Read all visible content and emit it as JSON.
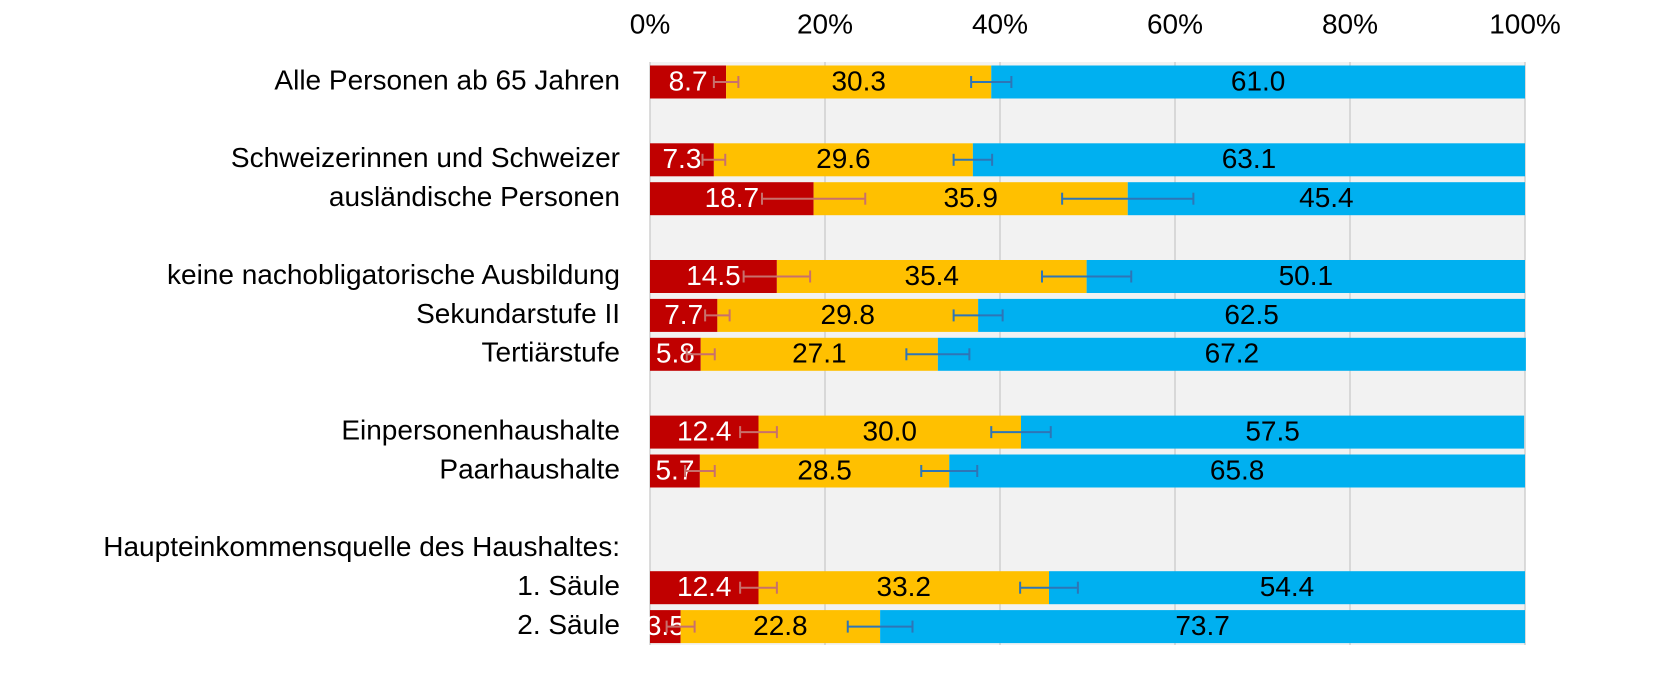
{
  "chart_data": {
    "type": "bar",
    "orientation": "horizontal",
    "stacked": true,
    "categories": [
      "Alle Personen ab 65 Jahren",
      null,
      "Schweizerinnen und Schweizer",
      "ausländische Personen",
      null,
      "keine nachobligatorische Ausbildung",
      "Sekundarstufe II",
      "Tertiärstufe",
      null,
      "Einpersonenhaushalte",
      "Paarhaushalte",
      null,
      "Haupteinkommensquelle des Haushaltes:",
      "1. Säule",
      "2. Säule"
    ],
    "series": [
      {
        "color": "#c00000",
        "label_color": "#ffffff",
        "error_color": "#c8706c",
        "values": [
          8.7,
          null,
          7.3,
          18.7,
          null,
          14.5,
          7.7,
          5.8,
          null,
          12.4,
          5.7,
          null,
          null,
          12.4,
          3.5
        ],
        "value_labels": [
          "8.7",
          null,
          "7.3",
          "18.7",
          null,
          "14.5",
          "7.7",
          "5.8",
          null,
          "12.4",
          "5.7",
          null,
          null,
          "12.4",
          "3.5"
        ],
        "errors": [
          1.4,
          null,
          1.3,
          5.9,
          null,
          3.8,
          1.4,
          1.6,
          null,
          2.1,
          1.7,
          null,
          null,
          2.1,
          1.6
        ]
      },
      {
        "color": "#ffc000",
        "label_color": "#000000",
        "error_color": "#2e75b6",
        "values": [
          30.3,
          null,
          29.6,
          35.9,
          null,
          35.4,
          29.8,
          27.1,
          null,
          30.0,
          28.5,
          null,
          null,
          33.2,
          22.8
        ],
        "value_labels": [
          "30.3",
          null,
          "29.6",
          "35.9",
          null,
          "35.4",
          "29.8",
          "27.1",
          null,
          "30.0",
          "28.5",
          null,
          null,
          "33.2",
          "22.8"
        ],
        "errors": [
          2.3,
          null,
          2.2,
          7.5,
          null,
          5.1,
          2.8,
          3.6,
          null,
          3.4,
          3.2,
          null,
          null,
          3.3,
          3.7
        ]
      },
      {
        "color": "#00b0f0",
        "label_color": "#000000",
        "values": [
          61.0,
          null,
          63.1,
          45.4,
          null,
          50.1,
          62.5,
          67.2,
          null,
          57.5,
          65.8,
          null,
          null,
          54.4,
          73.7
        ],
        "value_labels": [
          "61.0",
          null,
          "63.1",
          "45.4",
          null,
          "50.1",
          "62.5",
          "67.2",
          null,
          "57.5",
          "65.8",
          null,
          null,
          "54.4",
          "73.7"
        ]
      }
    ],
    "xlim": [
      0,
      100
    ],
    "xticks": [
      {
        "value": 0,
        "label": "0%"
      },
      {
        "value": 20,
        "label": "20%"
      },
      {
        "value": 40,
        "label": "40%"
      },
      {
        "value": 60,
        "label": "60%"
      },
      {
        "value": 80,
        "label": "80%"
      },
      {
        "value": 100,
        "label": "100%"
      }
    ],
    "grid": true
  }
}
